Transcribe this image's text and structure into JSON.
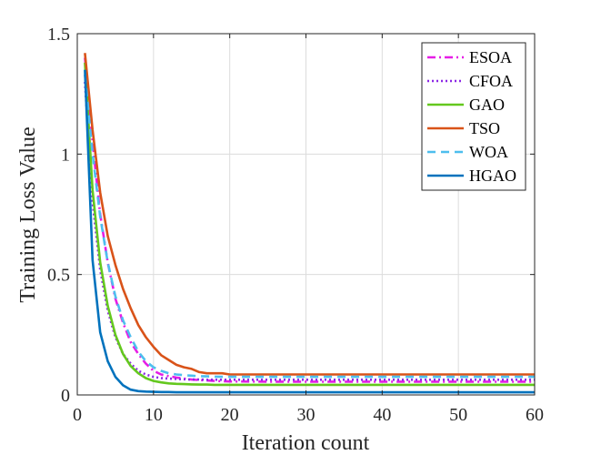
{
  "chart_data": {
    "type": "line",
    "title": "",
    "xlabel": "Iteration count",
    "ylabel": "Training Loss Value",
    "xlim": [
      0,
      60
    ],
    "ylim": [
      0,
      1.5
    ],
    "xticks": [
      0,
      10,
      20,
      30,
      40,
      50,
      60
    ],
    "yticks": [
      0,
      0.5,
      1,
      1.5
    ],
    "xtick_labels": [
      "0",
      "10",
      "20",
      "30",
      "40",
      "50",
      "60"
    ],
    "ytick_labels": [
      "0",
      "0.5",
      "1",
      "1.5"
    ],
    "grid": true,
    "legend_position": "top-right",
    "x": [
      1,
      2,
      3,
      4,
      5,
      6,
      7,
      8,
      9,
      10,
      11,
      12,
      13,
      14,
      15,
      16,
      17,
      18,
      19,
      20,
      25,
      30,
      35,
      40,
      45,
      50,
      55,
      60
    ],
    "series": [
      {
        "name": "ESOA",
        "color": "#e61ee6",
        "dash": "dashdot",
        "values": [
          1.4,
          1.05,
          0.75,
          0.55,
          0.4,
          0.3,
          0.22,
          0.17,
          0.13,
          0.1,
          0.085,
          0.078,
          0.072,
          0.068,
          0.064,
          0.062,
          0.06,
          0.058,
          0.057,
          0.056,
          0.055,
          0.055,
          0.055,
          0.055,
          0.055,
          0.055,
          0.055,
          0.055
        ]
      },
      {
        "name": "CFOA",
        "color": "#8c28e6",
        "dash": "dotted",
        "values": [
          1.3,
          0.8,
          0.52,
          0.35,
          0.24,
          0.17,
          0.13,
          0.1,
          0.085,
          0.075,
          0.07,
          0.068,
          0.066,
          0.065,
          0.064,
          0.064,
          0.063,
          0.063,
          0.063,
          0.063,
          0.063,
          0.063,
          0.063,
          0.063,
          0.063,
          0.063,
          0.063,
          0.063
        ]
      },
      {
        "name": "GAO",
        "color": "#64c81e",
        "dash": "solid",
        "values": [
          1.38,
          0.85,
          0.55,
          0.37,
          0.25,
          0.17,
          0.12,
          0.09,
          0.07,
          0.058,
          0.052,
          0.048,
          0.046,
          0.045,
          0.044,
          0.043,
          0.043,
          0.042,
          0.042,
          0.042,
          0.042,
          0.042,
          0.042,
          0.042,
          0.042,
          0.042,
          0.042,
          0.042
        ]
      },
      {
        "name": "TSO",
        "color": "#d95319",
        "dash": "solid",
        "values": [
          1.42,
          1.1,
          0.84,
          0.66,
          0.54,
          0.44,
          0.36,
          0.29,
          0.24,
          0.2,
          0.165,
          0.145,
          0.125,
          0.115,
          0.108,
          0.095,
          0.09,
          0.09,
          0.09,
          0.085,
          0.085,
          0.085,
          0.085,
          0.085,
          0.085,
          0.085,
          0.085,
          0.085
        ]
      },
      {
        "name": "WOA",
        "color": "#4dbeee",
        "dash": "dashed",
        "values": [
          1.33,
          1.0,
          0.74,
          0.55,
          0.41,
          0.31,
          0.24,
          0.18,
          0.14,
          0.115,
          0.1,
          0.09,
          0.085,
          0.082,
          0.08,
          0.078,
          0.077,
          0.076,
          0.075,
          0.075,
          0.075,
          0.075,
          0.075,
          0.075,
          0.075,
          0.075,
          0.075,
          0.075
        ]
      },
      {
        "name": "HGAO",
        "color": "#0072bd",
        "dash": "solid",
        "values": [
          1.35,
          0.56,
          0.26,
          0.14,
          0.075,
          0.04,
          0.022,
          0.016,
          0.014,
          0.013,
          0.012,
          0.012,
          0.011,
          0.011,
          0.011,
          0.011,
          0.011,
          0.011,
          0.011,
          0.011,
          0.011,
          0.011,
          0.011,
          0.011,
          0.011,
          0.011,
          0.011,
          0.011
        ]
      }
    ]
  }
}
